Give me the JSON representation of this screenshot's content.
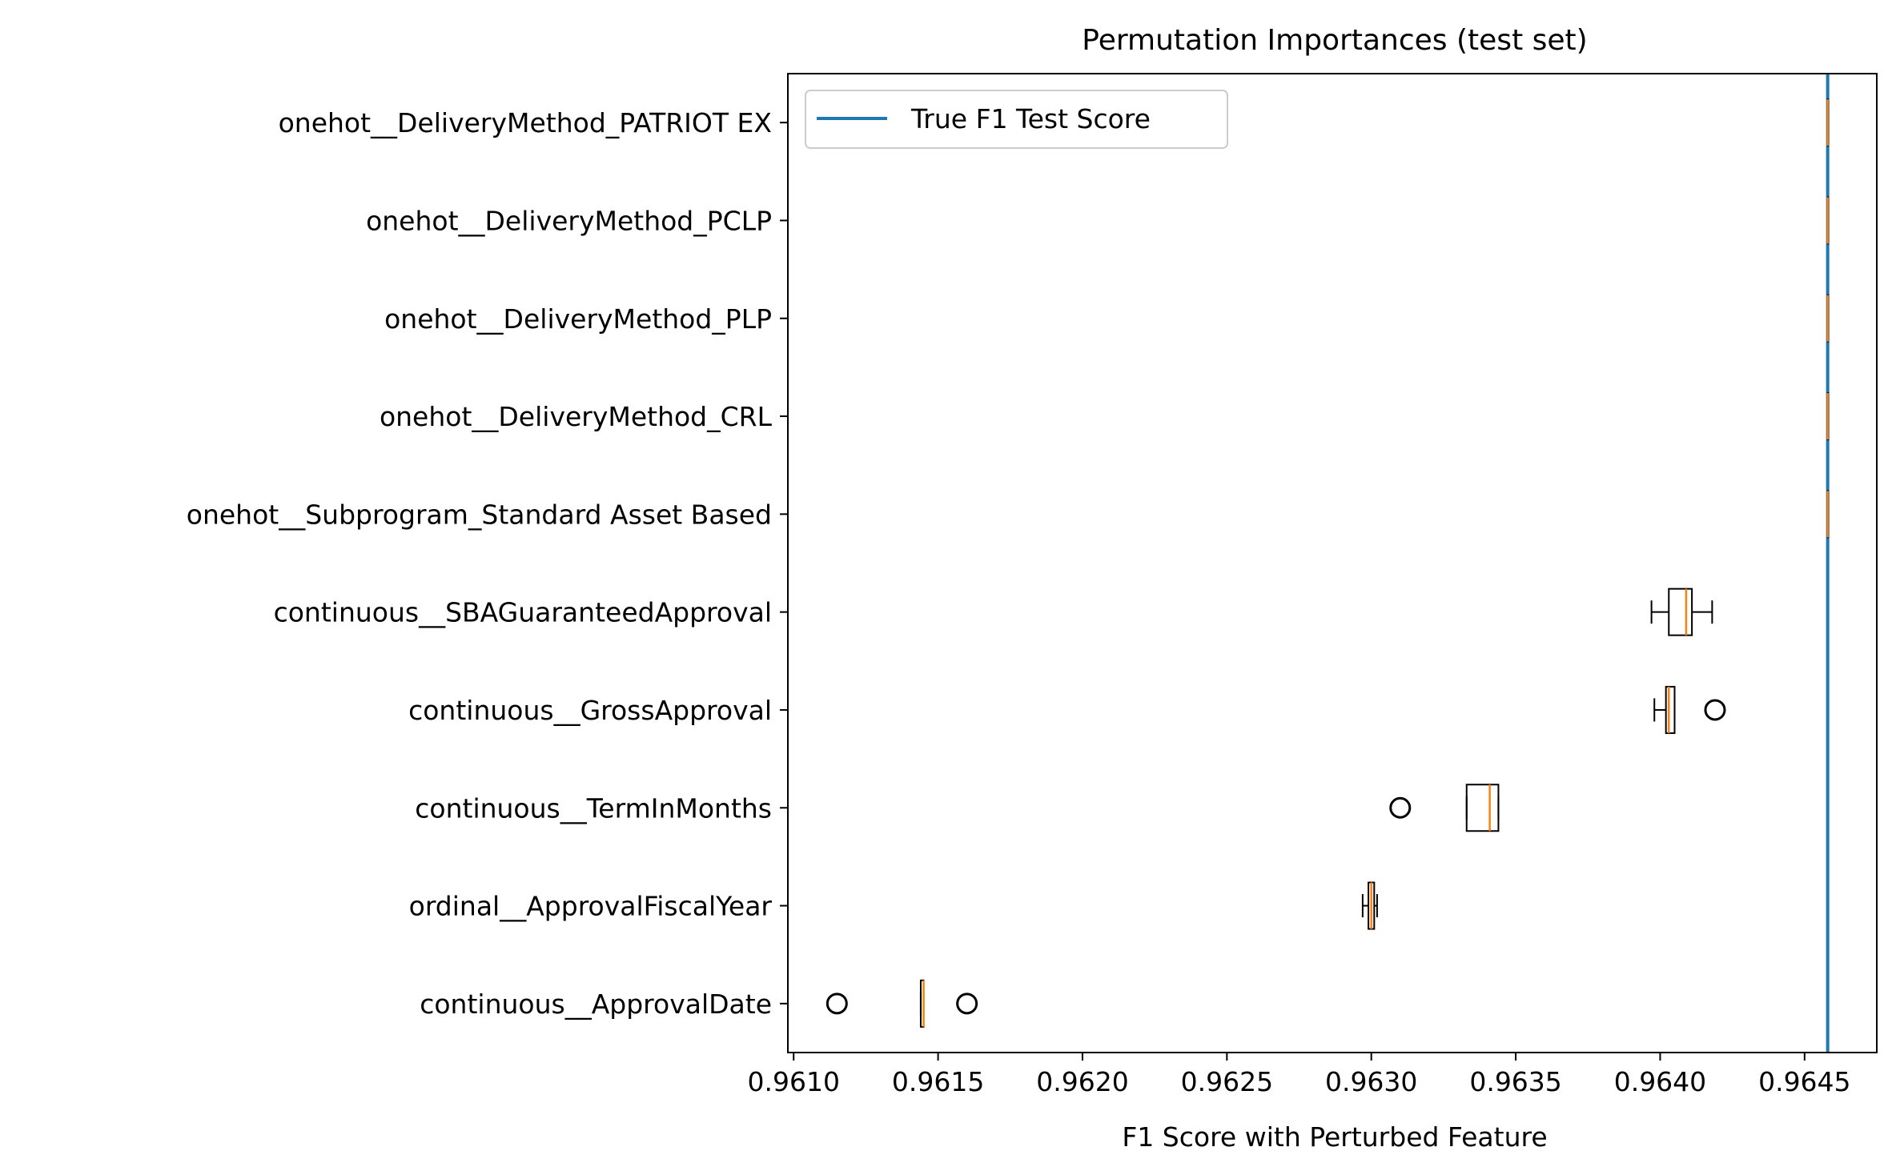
{
  "chart_data": {
    "type": "boxplot-horizontal",
    "title": "Permutation Importances (test set)",
    "xlabel": "F1 Score with Perturbed Feature",
    "ylabel": "",
    "xlim": [
      0.96098,
      0.96475
    ],
    "x_ticks": [
      "0.9610",
      "0.9615",
      "0.9620",
      "0.9625",
      "0.9630",
      "0.9635",
      "0.9640",
      "0.9645"
    ],
    "x_tick_values": [
      0.961,
      0.9615,
      0.962,
      0.9625,
      0.963,
      0.9635,
      0.964,
      0.9645
    ],
    "grid": false,
    "legend_position": "upper-left",
    "reference_line": {
      "label": "True F1 Test Score",
      "x": 0.96458,
      "color": "#1f77b4"
    },
    "box_color": "#000000",
    "median_color": "#ff7f0e",
    "features": [
      {
        "label": "onehot__DeliveryMethod_PATRIOT EX",
        "whislo": 0.96458,
        "q1": 0.96458,
        "med": 0.96458,
        "q3": 0.96458,
        "whishi": 0.96458,
        "fliers": []
      },
      {
        "label": "onehot__DeliveryMethod_PCLP",
        "whislo": 0.96458,
        "q1": 0.96458,
        "med": 0.96458,
        "q3": 0.96458,
        "whishi": 0.96458,
        "fliers": []
      },
      {
        "label": "onehot__DeliveryMethod_PLP",
        "whislo": 0.96458,
        "q1": 0.96458,
        "med": 0.96458,
        "q3": 0.96458,
        "whishi": 0.96458,
        "fliers": []
      },
      {
        "label": "onehot__DeliveryMethod_CRL",
        "whislo": 0.96458,
        "q1": 0.96458,
        "med": 0.96458,
        "q3": 0.96458,
        "whishi": 0.96458,
        "fliers": []
      },
      {
        "label": "onehot__Subprogram_Standard Asset Based",
        "whislo": 0.96458,
        "q1": 0.96458,
        "med": 0.96458,
        "q3": 0.96458,
        "whishi": 0.96458,
        "fliers": []
      },
      {
        "label": "continuous__SBAGuaranteedApproval",
        "whislo": 0.96397,
        "q1": 0.96403,
        "med": 0.96409,
        "q3": 0.96411,
        "whishi": 0.96418,
        "fliers": []
      },
      {
        "label": "continuous__GrossApproval",
        "whislo": 0.96398,
        "q1": 0.96402,
        "med": 0.96403,
        "q3": 0.96405,
        "whishi": 0.96405,
        "fliers": [
          0.96419
        ]
      },
      {
        "label": "continuous__TermInMonths",
        "whislo": 0.96333,
        "q1": 0.96333,
        "med": 0.96341,
        "q3": 0.96344,
        "whishi": 0.96344,
        "fliers": [
          0.9631
        ]
      },
      {
        "label": "ordinal__ApprovalFiscalYear",
        "whislo": 0.96297,
        "q1": 0.96299,
        "med": 0.963,
        "q3": 0.96301,
        "whishi": 0.96302,
        "fliers": []
      },
      {
        "label": "continuous__ApprovalDate",
        "whislo": 0.96144,
        "q1": 0.96144,
        "med": 0.96145,
        "q3": 0.96145,
        "whishi": 0.96145,
        "fliers": [
          0.96115,
          0.9616
        ]
      }
    ]
  }
}
